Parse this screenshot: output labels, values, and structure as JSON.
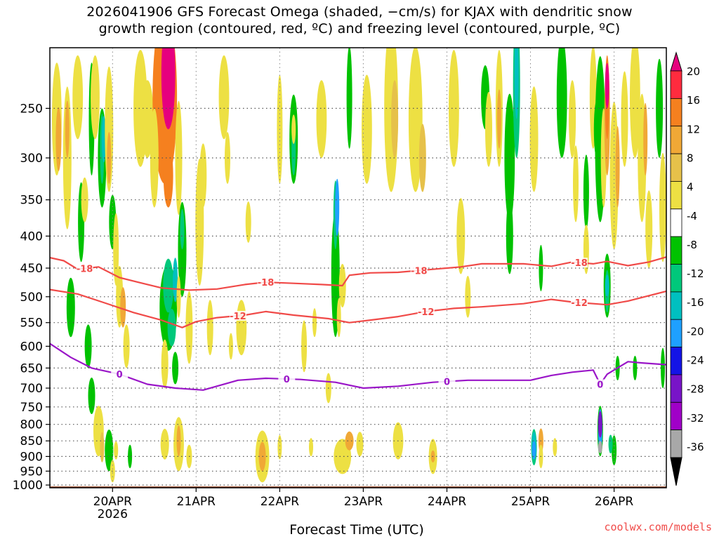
{
  "title": {
    "line1": "2026041906 GFS Forecast Omega (shaded, −cm/s) for KJAX with dendritic snow",
    "line2": "growth region (contoured, red, ºC) and freezing level (contoured, purple, ºC)"
  },
  "credit": "coolwx.com/models",
  "colors": {
    "dgz_contour": "#f04a48",
    "freezing_contour": "#9a16c8",
    "ground": "#a0522d",
    "grid": "#555555"
  },
  "chart_data": {
    "type": "heatmap",
    "title": "2026041906 GFS Forecast Omega (shaded, −cm/s) for KJAX with dendritic snow growth region (contoured, red, ºC) and freezing level (contoured, purple, ºC)",
    "xlabel": "Forecast Time (UTC)",
    "ylabel": "",
    "x_range_hours": [
      0,
      177
    ],
    "x_start_label": "2026041906",
    "x_ticks": [
      {
        "label": "20APR",
        "sublabel": "2026",
        "hour": 18
      },
      {
        "label": "21APR",
        "sublabel": "",
        "hour": 42
      },
      {
        "label": "22APR",
        "sublabel": "",
        "hour": 66
      },
      {
        "label": "23APR",
        "sublabel": "",
        "hour": 90
      },
      {
        "label": "24APR",
        "sublabel": "",
        "hour": 114
      },
      {
        "label": "25APR",
        "sublabel": "",
        "hour": 138
      },
      {
        "label": "26APR",
        "sublabel": "",
        "hour": 162
      }
    ],
    "y_ticks": [
      250,
      300,
      350,
      400,
      450,
      500,
      550,
      600,
      650,
      700,
      750,
      800,
      850,
      900,
      950,
      1000
    ],
    "y_range_hpa": [
      200,
      1010
    ],
    "colorbar": {
      "ticks": [
        20,
        16,
        12,
        8,
        4,
        -4,
        -8,
        -12,
        -16,
        -20,
        -24,
        -28,
        -32,
        -36
      ],
      "colors": [
        "#e6007e",
        "#ff2b3e",
        "#f5801f",
        "#f0a836",
        "#e6c14a",
        "#ede043",
        "#ffffff",
        "#00c200",
        "#00c87b",
        "#00c0c0",
        "#1ea0ff",
        "#1414e6",
        "#7814c8",
        "#a000c8",
        "#a8a8a8",
        "#000000"
      ]
    },
    "contours": [
      {
        "label": "-18",
        "color": "red",
        "points": [
          [
            0,
            433
          ],
          [
            4,
            438
          ],
          [
            8,
            452
          ],
          [
            14,
            448
          ],
          [
            20,
            466
          ],
          [
            26,
            475
          ],
          [
            32,
            484
          ],
          [
            40,
            488
          ],
          [
            48,
            486
          ],
          [
            56,
            478
          ],
          [
            62,
            474
          ],
          [
            70,
            476
          ],
          [
            78,
            478
          ],
          [
            84,
            480
          ],
          [
            86,
            462
          ],
          [
            92,
            458
          ],
          [
            100,
            457
          ],
          [
            110,
            452
          ],
          [
            118,
            448
          ],
          [
            124,
            443
          ],
          [
            136,
            443
          ],
          [
            144,
            447
          ],
          [
            150,
            440
          ],
          [
            156,
            443
          ],
          [
            160,
            439
          ],
          [
            166,
            446
          ],
          [
            172,
            440
          ],
          [
            177,
            432
          ]
        ],
        "labels_at_hours": [
          10,
          62,
          106,
          152
        ]
      },
      {
        "label": "-12",
        "color": "red",
        "points": [
          [
            0,
            487
          ],
          [
            8,
            495
          ],
          [
            16,
            512
          ],
          [
            24,
            530
          ],
          [
            32,
            545
          ],
          [
            38,
            560
          ],
          [
            42,
            548
          ],
          [
            48,
            540
          ],
          [
            56,
            535
          ],
          [
            62,
            528
          ],
          [
            70,
            535
          ],
          [
            80,
            542
          ],
          [
            86,
            550
          ],
          [
            92,
            545
          ],
          [
            100,
            538
          ],
          [
            108,
            528
          ],
          [
            116,
            522
          ],
          [
            124,
            519
          ],
          [
            136,
            513
          ],
          [
            144,
            505
          ],
          [
            150,
            510
          ],
          [
            160,
            515
          ],
          [
            166,
            508
          ],
          [
            177,
            490
          ]
        ],
        "labels_at_hours": [
          54,
          108,
          152
        ]
      },
      {
        "label": "0",
        "color": "purple",
        "points": [
          [
            0,
            594
          ],
          [
            6,
            625
          ],
          [
            12,
            650
          ],
          [
            20,
            665
          ],
          [
            28,
            690
          ],
          [
            36,
            700
          ],
          [
            44,
            705
          ],
          [
            54,
            680
          ],
          [
            62,
            675
          ],
          [
            72,
            678
          ],
          [
            82,
            685
          ],
          [
            90,
            700
          ],
          [
            100,
            695
          ],
          [
            110,
            685
          ],
          [
            120,
            680
          ],
          [
            130,
            680
          ],
          [
            138,
            680
          ],
          [
            144,
            668
          ],
          [
            150,
            660
          ],
          [
            156,
            655
          ],
          [
            158,
            690
          ],
          [
            160,
            665
          ],
          [
            166,
            635
          ],
          [
            170,
            638
          ],
          [
            177,
            642
          ]
        ],
        "labels_at_hours": [
          20,
          68,
          114,
          158
        ]
      }
    ]
  }
}
